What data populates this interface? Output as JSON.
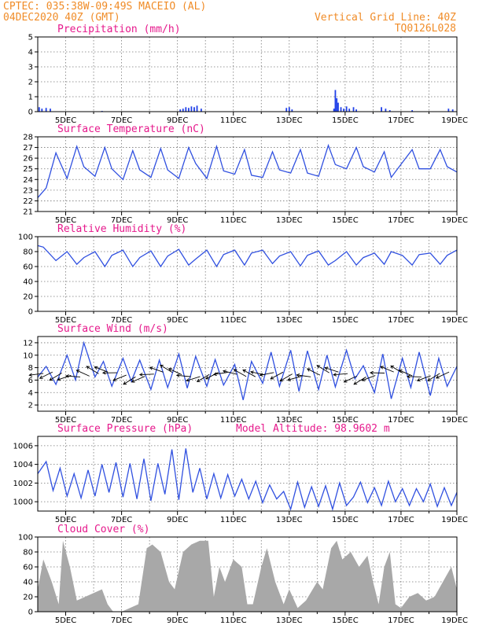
{
  "header": {
    "line1_left": "CPTEC:   035:38W-09:49S   MACEIO (AL)",
    "line2_left": "04DEC2020 40Z (GMT)",
    "line1_right": "Vertical Grid Line: 40Z",
    "line2_right": "TQ0126L028"
  },
  "colors": {
    "header": "#f08c28",
    "title": "#e6198c",
    "line": "#3050e0",
    "bar": "#2040e8",
    "cloud": "#a8a8a8"
  },
  "x_ticks": [
    "5DEC",
    "7DEC",
    "9DEC",
    "11DEC",
    "13DEC",
    "15DEC",
    "17DEC",
    "19DEC"
  ],
  "x_tick_days": [
    5,
    7,
    9,
    11,
    13,
    15,
    17,
    19
  ],
  "x_range_days": [
    4.0,
    19.0
  ],
  "chart_data": [
    {
      "type": "bar",
      "id": "precip",
      "title": "Precipitation (mm/h)",
      "ylim": [
        0,
        5
      ],
      "yticks": [
        0,
        1,
        2,
        3,
        4,
        5
      ],
      "x_days": [
        4.05,
        4.15,
        4.3,
        4.45,
        6.3,
        9.1,
        9.2,
        9.3,
        9.4,
        9.5,
        9.6,
        9.7,
        9.85,
        12.9,
        13.0,
        13.1,
        14.6,
        14.65,
        14.7,
        14.75,
        14.85,
        14.95,
        15.05,
        15.15,
        15.3,
        15.4,
        16.3,
        16.45,
        16.6,
        17.4,
        18.7,
        18.85
      ],
      "values": [
        0.3,
        0.2,
        0.25,
        0.2,
        0.05,
        0.15,
        0.2,
        0.3,
        0.25,
        0.35,
        0.3,
        0.4,
        0.2,
        0.25,
        0.3,
        0.15,
        0.2,
        1.45,
        0.9,
        0.6,
        0.3,
        0.2,
        0.35,
        0.2,
        0.3,
        0.15,
        0.3,
        0.2,
        0.1,
        0.1,
        0.2,
        0.15
      ]
    },
    {
      "type": "line",
      "id": "temp",
      "title": "Surface Temperature (nC)",
      "ylim": [
        21,
        28
      ],
      "yticks": [
        21,
        22,
        23,
        24,
        25,
        26,
        27,
        28
      ],
      "x_days": [
        4.0,
        4.3,
        4.65,
        5.05,
        5.4,
        5.65,
        6.05,
        6.4,
        6.65,
        7.05,
        7.4,
        7.65,
        8.05,
        8.4,
        8.65,
        9.05,
        9.4,
        9.65,
        10.05,
        10.4,
        10.65,
        11.05,
        11.4,
        11.65,
        12.05,
        12.4,
        12.65,
        13.05,
        13.4,
        13.65,
        14.05,
        14.4,
        14.65,
        15.05,
        15.4,
        15.65,
        16.05,
        16.4,
        16.65,
        17.05,
        17.4,
        17.65,
        18.05,
        18.4,
        18.65,
        19.0
      ],
      "values": [
        22.3,
        23.2,
        26.5,
        24.1,
        27.1,
        25.2,
        24.3,
        27.0,
        25.0,
        24.0,
        26.7,
        24.9,
        24.2,
        26.9,
        24.9,
        24.1,
        27.0,
        25.5,
        24.1,
        27.1,
        24.8,
        24.5,
        26.8,
        24.4,
        24.2,
        26.6,
        24.9,
        24.6,
        26.8,
        24.6,
        24.3,
        27.2,
        25.4,
        25.0,
        27.0,
        25.2,
        24.7,
        26.6,
        24.2,
        25.6,
        26.8,
        25.0,
        25.0,
        26.8,
        25.2,
        24.7
      ]
    },
    {
      "type": "line",
      "id": "rh",
      "title": "Relative Humidity (%)",
      "ylim": [
        0,
        100
      ],
      "yticks": [
        0,
        20,
        40,
        60,
        80,
        100
      ],
      "x_days": [
        4.0,
        4.2,
        4.65,
        5.05,
        5.4,
        5.65,
        6.05,
        6.4,
        6.65,
        7.05,
        7.4,
        7.65,
        8.05,
        8.4,
        8.65,
        9.05,
        9.4,
        9.65,
        10.05,
        10.4,
        10.65,
        11.05,
        11.4,
        11.65,
        12.05,
        12.4,
        12.65,
        13.05,
        13.4,
        13.65,
        14.05,
        14.4,
        14.65,
        15.05,
        15.4,
        15.65,
        16.05,
        16.4,
        16.65,
        17.05,
        17.4,
        17.65,
        18.05,
        18.4,
        18.65,
        19.0
      ],
      "values": [
        88,
        86,
        68,
        80,
        63,
        72,
        80,
        60,
        75,
        82,
        60,
        72,
        81,
        60,
        74,
        83,
        62,
        70,
        82,
        60,
        76,
        82,
        62,
        78,
        82,
        64,
        74,
        80,
        61,
        75,
        81,
        62,
        68,
        80,
        62,
        72,
        78,
        63,
        80,
        75,
        62,
        76,
        78,
        63,
        75,
        82
      ]
    },
    {
      "type": "line",
      "id": "wind",
      "title": "Surface Wind (m/s)",
      "ylim": [
        1,
        13
      ],
      "yticks": [
        2,
        4,
        6,
        8,
        10,
        12
      ],
      "x_days": [
        4.0,
        4.3,
        4.65,
        5.05,
        5.35,
        5.65,
        6.05,
        6.35,
        6.65,
        7.05,
        7.35,
        7.65,
        8.05,
        8.35,
        8.65,
        9.05,
        9.35,
        9.65,
        10.05,
        10.35,
        10.65,
        11.05,
        11.35,
        11.65,
        12.05,
        12.35,
        12.65,
        13.05,
        13.35,
        13.65,
        14.05,
        14.35,
        14.65,
        15.05,
        15.35,
        15.65,
        16.05,
        16.35,
        16.65,
        17.05,
        17.35,
        17.65,
        18.05,
        18.35,
        18.65,
        19.0
      ],
      "values": [
        6.5,
        8.2,
        5.3,
        10.0,
        6.0,
        12.0,
        6.5,
        9.0,
        5.0,
        9.5,
        5.8,
        9.2,
        4.5,
        9.2,
        4.8,
        10.2,
        4.7,
        9.8,
        5.0,
        9.3,
        5.2,
        8.5,
        2.8,
        9.0,
        5.5,
        10.5,
        5.0,
        10.8,
        4.2,
        10.7,
        4.5,
        10.0,
        4.9,
        10.8,
        6.2,
        8.3,
        4.0,
        10.2,
        3.0,
        9.5,
        4.8,
        10.5,
        3.5,
        9.5,
        5.0,
        8.2
      ]
    },
    {
      "type": "line",
      "id": "pres",
      "title": "Surface Pressure (hPa)",
      "annotation": "Model Altitude: 98.9602 m",
      "ylim": [
        999,
        1007
      ],
      "yticks": [
        1000,
        1002,
        1004,
        1006
      ],
      "x_days": [
        4.0,
        4.3,
        4.55,
        4.8,
        5.05,
        5.3,
        5.55,
        5.8,
        6.05,
        6.3,
        6.55,
        6.8,
        7.05,
        7.3,
        7.55,
        7.8,
        8.05,
        8.3,
        8.55,
        8.8,
        9.05,
        9.3,
        9.55,
        9.8,
        10.05,
        10.3,
        10.55,
        10.8,
        11.05,
        11.3,
        11.55,
        11.8,
        12.05,
        12.3,
        12.55,
        12.8,
        13.05,
        13.3,
        13.55,
        13.8,
        14.05,
        14.3,
        14.55,
        14.8,
        15.05,
        15.3,
        15.55,
        15.8,
        16.05,
        16.3,
        16.55,
        16.8,
        17.05,
        17.3,
        17.55,
        17.8,
        18.05,
        18.3,
        18.55,
        18.8,
        19.0
      ],
      "values": [
        1003.0,
        1004.3,
        1001.2,
        1003.6,
        1000.6,
        1003.0,
        1000.4,
        1003.4,
        1000.6,
        1004.0,
        1001.0,
        1004.2,
        1000.5,
        1004.1,
        1000.3,
        1004.6,
        1000.1,
        1004.1,
        1000.8,
        1005.6,
        1000.2,
        1005.7,
        1001.0,
        1003.6,
        1000.3,
        1003.0,
        1000.4,
        1002.9,
        1000.6,
        1002.4,
        1000.3,
        1002.2,
        999.9,
        1001.8,
        1000.3,
        1001.1,
        999.2,
        1002.1,
        999.4,
        1001.6,
        999.5,
        1001.7,
        999.2,
        1002.0,
        999.6,
        1000.5,
        1002.1,
        999.9,
        1001.5,
        999.6,
        1002.2,
        1000.0,
        1001.4,
        999.6,
        1001.4,
        1000.0,
        1001.9,
        999.5,
        1001.5,
        999.6,
        1001.0
      ]
    },
    {
      "type": "area",
      "id": "cloud",
      "title": "Cloud Cover (%)",
      "ylim": [
        0,
        100
      ],
      "yticks": [
        0,
        20,
        40,
        60,
        80,
        100
      ],
      "x_days": [
        4.0,
        4.2,
        4.5,
        4.75,
        4.9,
        5.15,
        5.4,
        5.7,
        6.0,
        6.3,
        6.5,
        6.7,
        7.0,
        7.3,
        7.6,
        7.9,
        8.1,
        8.4,
        8.7,
        8.9,
        9.2,
        9.5,
        9.8,
        10.1,
        10.3,
        10.5,
        10.7,
        11.0,
        11.3,
        11.5,
        11.7,
        12.0,
        12.2,
        12.5,
        12.8,
        13.0,
        13.3,
        13.6,
        14.0,
        14.2,
        14.5,
        14.7,
        14.9,
        15.2,
        15.5,
        15.8,
        16.0,
        16.2,
        16.4,
        16.6,
        16.8,
        17.0,
        17.3,
        17.6,
        17.9,
        18.2,
        18.5,
        18.8,
        19.0
      ],
      "values": [
        30,
        70,
        40,
        10,
        95,
        60,
        15,
        20,
        25,
        30,
        10,
        0,
        0,
        5,
        10,
        85,
        90,
        80,
        40,
        30,
        80,
        90,
        95,
        95,
        20,
        60,
        40,
        70,
        60,
        10,
        10,
        60,
        85,
        40,
        10,
        30,
        5,
        15,
        40,
        30,
        85,
        95,
        70,
        80,
        60,
        75,
        40,
        10,
        60,
        80,
        10,
        5,
        20,
        25,
        15,
        20,
        40,
        60,
        30
      ]
    }
  ]
}
